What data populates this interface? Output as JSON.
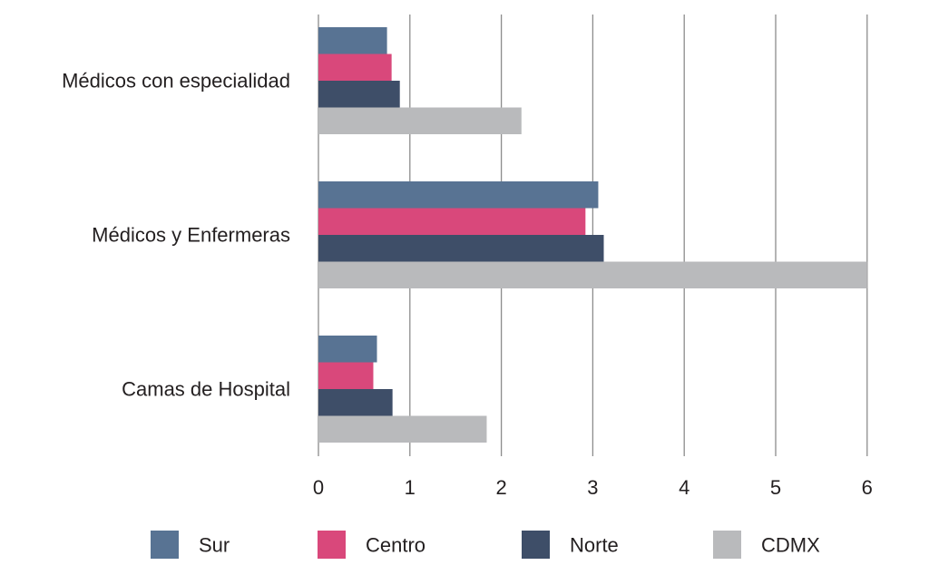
{
  "chart_data": {
    "type": "bar",
    "orientation": "horizontal",
    "categories": [
      "Médicos con especialidad",
      "Médicos y Enfermeras",
      "Camas de Hospital"
    ],
    "series": [
      {
        "name": "Sur",
        "color": "#587393",
        "values": [
          0.75,
          3.06,
          0.64
        ]
      },
      {
        "name": "Centro",
        "color": "#d9487b",
        "values": [
          0.8,
          2.92,
          0.6
        ]
      },
      {
        "name": "Norte",
        "color": "#3e4e68",
        "values": [
          0.89,
          3.12,
          0.81
        ]
      },
      {
        "name": "CDMX",
        "color": "#b9babc",
        "values": [
          2.22,
          6.0,
          1.84
        ]
      }
    ],
    "xlim": [
      0,
      6
    ],
    "xticks": [
      "0",
      "1",
      "2",
      "3",
      "4",
      "5",
      "6"
    ],
    "grid": true,
    "legend_position": "bottom"
  }
}
